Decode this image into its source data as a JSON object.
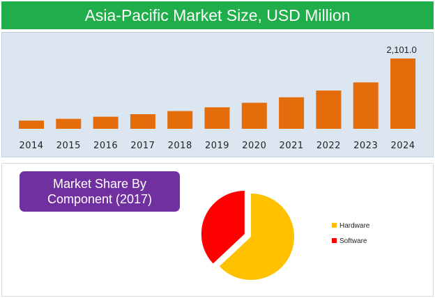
{
  "title": "Asia-Pacific Market Size, USD Million",
  "colors": {
    "title_bg": "#1fae4a",
    "bar": "#e46c0a",
    "panel_bg": "#dce6f1",
    "box_bg": "#7030a0",
    "hardware": "#ffc000",
    "software": "#ff0000"
  },
  "share_box": {
    "line1": "Market Share By",
    "line2": "Component (2017)"
  },
  "chart_data": [
    {
      "type": "bar",
      "title": "Asia-Pacific Market Size, USD Million",
      "categories": [
        "2014",
        "2015",
        "2016",
        "2017",
        "2018",
        "2019",
        "2020",
        "2021",
        "2022",
        "2023",
        "2024"
      ],
      "values": [
        245,
        298,
        361,
        437,
        530,
        642,
        778,
        943,
        1143,
        1387,
        2101.0
      ],
      "data_labels": [
        "",
        "",
        "",
        "",
        "",
        "",
        "",
        "",
        "",
        "",
        "2,101.0"
      ],
      "xlabel": "",
      "ylabel": "",
      "ylim": [
        0,
        2101.0
      ],
      "grid": false
    },
    {
      "type": "pie",
      "title": "Market Share By Component (2017)",
      "labels": [
        "Hardware",
        "Software"
      ],
      "values": [
        63,
        37
      ],
      "colors": [
        "#ffc000",
        "#ff0000"
      ],
      "exploded": "Software",
      "legend": "right"
    }
  ]
}
